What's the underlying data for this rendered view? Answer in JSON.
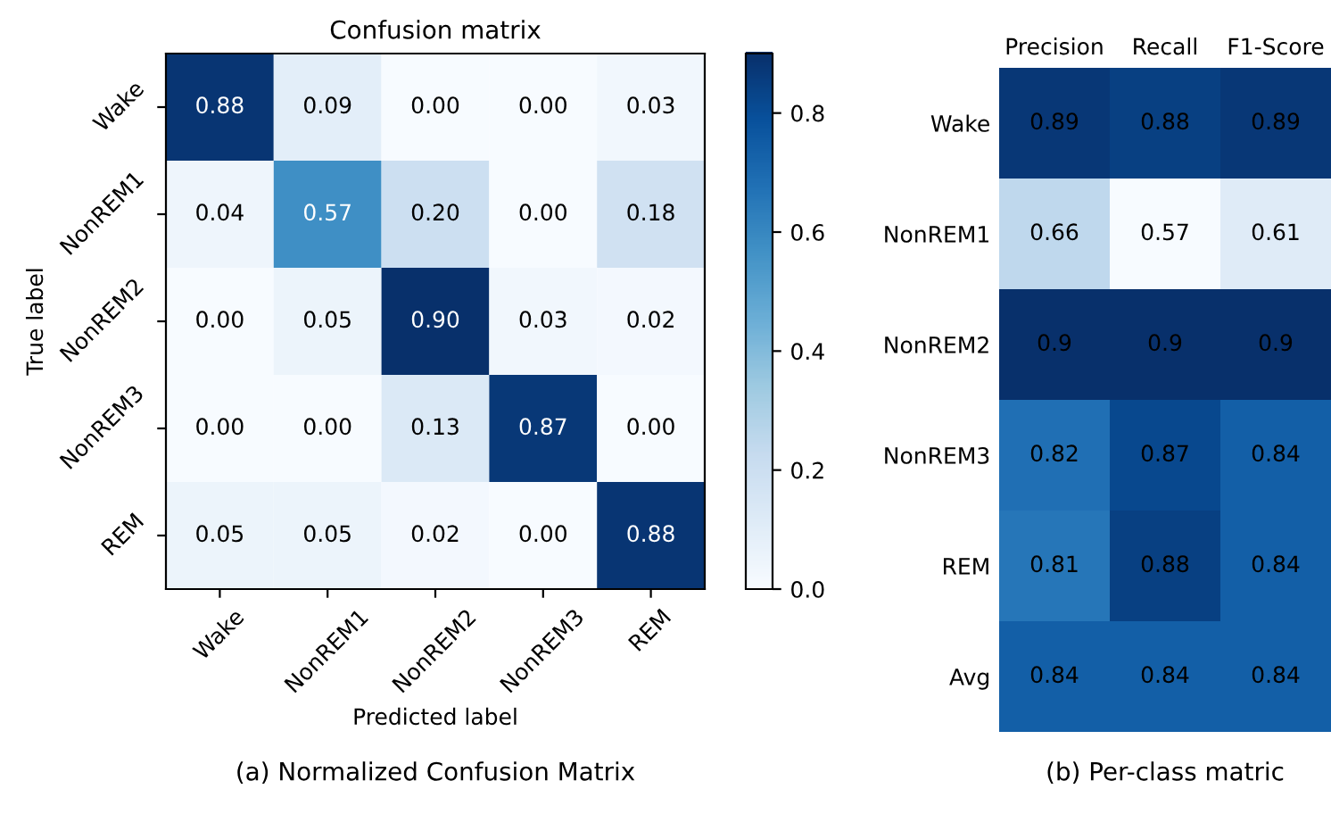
{
  "chart_data": [
    {
      "type": "heatmap",
      "title": "Confusion matrix",
      "xlabel": "Predicted label",
      "ylabel": "True label",
      "categories": [
        "Wake",
        "NonREM1",
        "NonREM2",
        "NonREM3",
        "REM"
      ],
      "y_categories": [
        "Wake",
        "NonREM1",
        "NonREM2",
        "NonREM3",
        "REM"
      ],
      "cells": [
        [
          0.88,
          0.09,
          0.0,
          0.0,
          0.03
        ],
        [
          0.04,
          0.57,
          0.2,
          0.0,
          0.18
        ],
        [
          0.0,
          0.05,
          0.9,
          0.03,
          0.02
        ],
        [
          0.0,
          0.0,
          0.13,
          0.87,
          0.0
        ],
        [
          0.05,
          0.05,
          0.02,
          0.0,
          0.88
        ]
      ],
      "cell_labels": [
        [
          "0.88",
          "0.09",
          "0.00",
          "0.00",
          "0.03"
        ],
        [
          "0.04",
          "0.57",
          "0.20",
          "0.00",
          "0.18"
        ],
        [
          "0.00",
          "0.05",
          "0.90",
          "0.03",
          "0.02"
        ],
        [
          "0.00",
          "0.00",
          "0.13",
          "0.87",
          "0.00"
        ],
        [
          "0.05",
          "0.05",
          "0.02",
          "0.00",
          "0.88"
        ]
      ],
      "clim": [
        0,
        0.9
      ],
      "cticks": [
        {
          "value": 0,
          "label": "0.0"
        },
        {
          "value": 0.2,
          "label": "0.2"
        },
        {
          "value": 0.4,
          "label": "0.4"
        },
        {
          "value": 0.6,
          "label": "0.6"
        },
        {
          "value": 0.8,
          "label": "0.8"
        }
      ],
      "annotations": [
        "(a) Normalized Confusion Matrix"
      ]
    },
    {
      "type": "heatmap",
      "categories": [
        "Precision",
        "Recall",
        "F1-Score"
      ],
      "y_categories": [
        "Wake",
        "NonREM1",
        "NonREM2",
        "NonREM3",
        "REM",
        "Avg"
      ],
      "cells": [
        [
          0.89,
          0.88,
          0.89
        ],
        [
          0.66,
          0.57,
          0.61
        ],
        [
          0.9,
          0.9,
          0.9
        ],
        [
          0.82,
          0.87,
          0.84
        ],
        [
          0.81,
          0.88,
          0.84
        ],
        [
          0.84,
          0.84,
          0.84
        ]
      ],
      "cell_labels": [
        [
          "0.89",
          "0.88",
          "0.89"
        ],
        [
          "0.66",
          "0.57",
          "0.61"
        ],
        [
          "0.9",
          "0.9",
          "0.9"
        ],
        [
          "0.82",
          "0.87",
          "0.84"
        ],
        [
          "0.81",
          "0.88",
          "0.84"
        ],
        [
          "0.84",
          "0.84",
          "0.84"
        ]
      ],
      "annotations": [
        "(b) Per-class matric"
      ]
    }
  ]
}
